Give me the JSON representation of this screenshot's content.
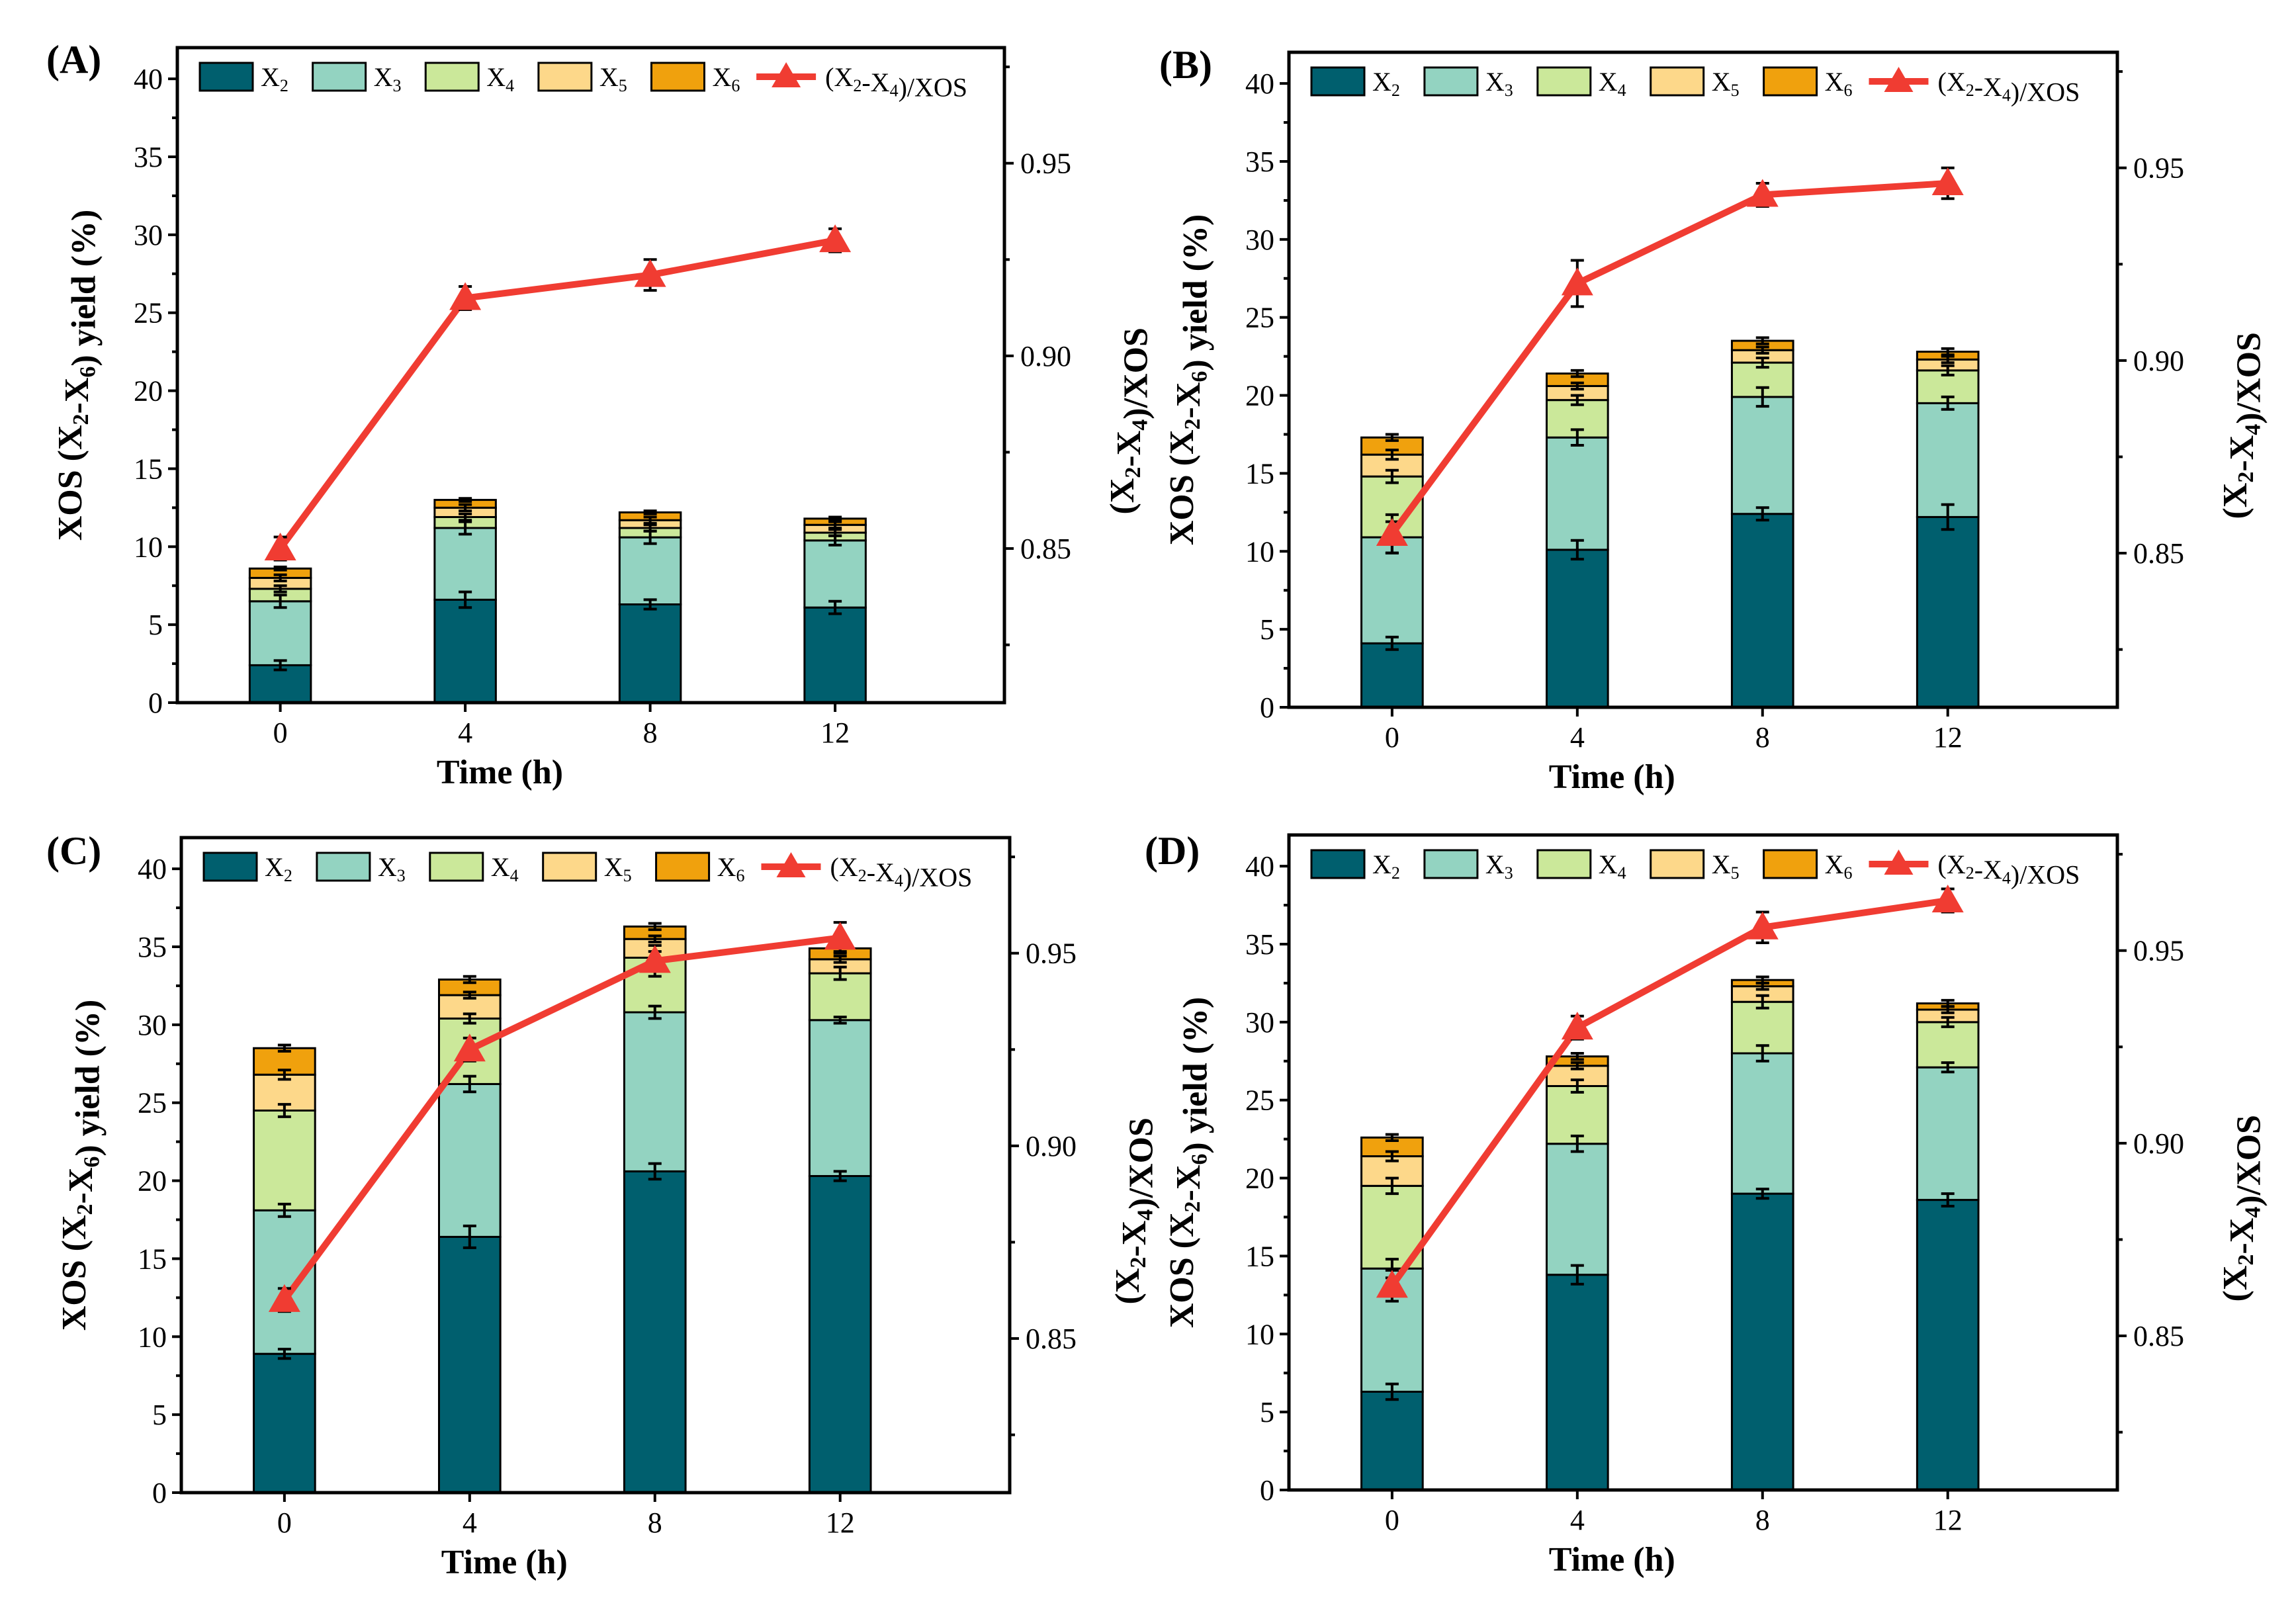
{
  "chart_data": [
    {
      "panel_label": "(A)",
      "type": "bar",
      "stacked": true,
      "categories": [
        "0",
        "4",
        "8",
        "12"
      ],
      "xlabel": "Time (h)",
      "ylabel": "XOS (X2-X6) yield (%)",
      "y2label": "(X2-X4)/XOS",
      "ylim": [
        0,
        42
      ],
      "y2lim": [
        0.81,
        0.98
      ],
      "yticks": [
        "0",
        "5",
        "10",
        "15",
        "20",
        "25",
        "30",
        "35",
        "40"
      ],
      "y2ticks": [
        "0.85",
        "0.90",
        "0.95"
      ],
      "legend_position": "top",
      "series": [
        {
          "name": "X2",
          "color": "#005f6e",
          "values": [
            2.4,
            6.6,
            6.3,
            6.1
          ],
          "errors": [
            0.3,
            0.5,
            0.3,
            0.4
          ]
        },
        {
          "name": "X3",
          "color": "#93d3c1",
          "values": [
            4.1,
            4.6,
            4.3,
            4.3
          ],
          "errors": [
            0.4,
            0.4,
            0.4,
            0.3
          ]
        },
        {
          "name": "X4",
          "color": "#cbe89a",
          "values": [
            0.8,
            0.7,
            0.6,
            0.5
          ],
          "errors": [
            0.2,
            0.2,
            0.2,
            0.2
          ]
        },
        {
          "name": "X5",
          "color": "#fdd88a",
          "values": [
            0.7,
            0.6,
            0.5,
            0.5
          ],
          "errors": [
            0.2,
            0.2,
            0.2,
            0.2
          ]
        },
        {
          "name": "X6",
          "color": "#f0a10d",
          "values": [
            0.6,
            0.5,
            0.5,
            0.4
          ],
          "errors": [
            0.1,
            0.1,
            0.1,
            0.1
          ]
        }
      ],
      "ratio_series": {
        "name": "(X2-X4)/XOS",
        "color": "#f03c32",
        "values": [
          0.85,
          0.915,
          0.921,
          0.93
        ],
        "errors": [
          0.003,
          0.003,
          0.004,
          0.003
        ]
      }
    },
    {
      "panel_label": "(B)",
      "type": "bar",
      "stacked": true,
      "categories": [
        "0",
        "4",
        "8",
        "12"
      ],
      "xlabel": "Time (h)",
      "ylabel": "XOS (X2-X6) yield (%)",
      "y2label": "(X2-X4)/XOS",
      "ylim": [
        0,
        42
      ],
      "y2lim": [
        0.81,
        0.98
      ],
      "yticks": [
        "0",
        "5",
        "10",
        "15",
        "20",
        "25",
        "30",
        "35",
        "40"
      ],
      "y2ticks": [
        "0.85",
        "0.90",
        "0.95"
      ],
      "legend_position": "top",
      "series": [
        {
          "name": "X2",
          "color": "#005f6e",
          "values": [
            4.1,
            10.1,
            12.4,
            12.2
          ],
          "errors": [
            0.4,
            0.6,
            0.4,
            0.8
          ]
        },
        {
          "name": "X3",
          "color": "#93d3c1",
          "values": [
            6.8,
            7.2,
            7.5,
            7.3
          ],
          "errors": [
            1.0,
            0.5,
            0.6,
            0.4
          ]
        },
        {
          "name": "X4",
          "color": "#cbe89a",
          "values": [
            3.9,
            2.4,
            2.2,
            2.1
          ],
          "errors": [
            0.4,
            0.3,
            0.3,
            0.3
          ]
        },
        {
          "name": "X5",
          "color": "#fdd88a",
          "values": [
            1.4,
            0.9,
            0.8,
            0.7
          ],
          "errors": [
            0.3,
            0.2,
            0.2,
            0.2
          ]
        },
        {
          "name": "X6",
          "color": "#f0a10d",
          "values": [
            1.1,
            0.8,
            0.6,
            0.5
          ],
          "errors": [
            0.2,
            0.2,
            0.2,
            0.2
          ]
        }
      ],
      "ratio_series": {
        "name": "(X2-X4)/XOS",
        "color": "#f03c32",
        "values": [
          0.855,
          0.92,
          0.943,
          0.946
        ],
        "errors": [
          0.005,
          0.006,
          0.003,
          0.004
        ]
      }
    },
    {
      "panel_label": "(C)",
      "type": "bar",
      "stacked": true,
      "categories": [
        "0",
        "4",
        "8",
        "12"
      ],
      "xlabel": "Time (h)",
      "ylabel": "XOS (X2-X6) yield (%)",
      "y2label": "(X2-X4)/XOS",
      "ylim": [
        0,
        42
      ],
      "y2lim": [
        0.81,
        0.98
      ],
      "yticks": [
        "0",
        "5",
        "10",
        "15",
        "20",
        "25",
        "30",
        "35",
        "40"
      ],
      "y2ticks": [
        "0.85",
        "0.90",
        "0.95"
      ],
      "legend_position": "top",
      "series": [
        {
          "name": "X2",
          "color": "#005f6e",
          "values": [
            8.9,
            16.4,
            20.6,
            20.3
          ],
          "errors": [
            0.3,
            0.7,
            0.5,
            0.3
          ]
        },
        {
          "name": "X3",
          "color": "#93d3c1",
          "values": [
            9.2,
            9.8,
            10.2,
            10.0
          ],
          "errors": [
            0.4,
            0.5,
            0.4,
            0.2
          ]
        },
        {
          "name": "X4",
          "color": "#cbe89a",
          "values": [
            6.4,
            4.2,
            3.5,
            3.0
          ],
          "errors": [
            0.4,
            0.3,
            0.4,
            0.4
          ]
        },
        {
          "name": "X5",
          "color": "#fdd88a",
          "values": [
            2.3,
            1.5,
            1.2,
            0.9
          ],
          "errors": [
            0.3,
            0.2,
            0.2,
            0.2
          ]
        },
        {
          "name": "X6",
          "color": "#f0a10d",
          "values": [
            1.7,
            1.0,
            0.8,
            0.7
          ],
          "errors": [
            0.2,
            0.2,
            0.2,
            0.2
          ]
        }
      ],
      "ratio_series": {
        "name": "(X2-X4)/XOS",
        "color": "#f03c32",
        "values": [
          0.86,
          0.925,
          0.948,
          0.954
        ],
        "errors": [
          0.003,
          0.003,
          0.004,
          0.004
        ]
      }
    },
    {
      "panel_label": "(D)",
      "type": "bar",
      "stacked": true,
      "categories": [
        "0",
        "4",
        "8",
        "12"
      ],
      "xlabel": "Time (h)",
      "ylabel": "XOS (X2-X6) yield (%)",
      "y2label": "(X2-X4)/XOS",
      "ylim": [
        0,
        42
      ],
      "y2lim": [
        0.81,
        0.98
      ],
      "yticks": [
        "0",
        "5",
        "10",
        "15",
        "20",
        "25",
        "30",
        "35",
        "40"
      ],
      "y2ticks": [
        "0.85",
        "0.90",
        "0.95"
      ],
      "legend_position": "top",
      "series": [
        {
          "name": "X2",
          "color": "#005f6e",
          "values": [
            6.3,
            13.8,
            19.0,
            18.6
          ],
          "errors": [
            0.5,
            0.6,
            0.3,
            0.4
          ]
        },
        {
          "name": "X3",
          "color": "#93d3c1",
          "values": [
            7.9,
            8.4,
            9.0,
            8.5
          ],
          "errors": [
            0.6,
            0.5,
            0.5,
            0.3
          ]
        },
        {
          "name": "X4",
          "color": "#cbe89a",
          "values": [
            5.3,
            3.7,
            3.3,
            2.9
          ],
          "errors": [
            0.5,
            0.4,
            0.4,
            0.3
          ]
        },
        {
          "name": "X5",
          "color": "#fdd88a",
          "values": [
            1.9,
            1.3,
            1.0,
            0.8
          ],
          "errors": [
            0.3,
            0.2,
            0.2,
            0.2
          ]
        },
        {
          "name": "X6",
          "color": "#f0a10d",
          "values": [
            1.2,
            0.6,
            0.4,
            0.4
          ],
          "errors": [
            0.2,
            0.2,
            0.2,
            0.2
          ]
        }
      ],
      "ratio_series": {
        "name": "(X2-X4)/XOS",
        "color": "#f03c32",
        "values": [
          0.863,
          0.93,
          0.956,
          0.963
        ],
        "errors": [
          0.004,
          0.003,
          0.004,
          0.003
        ]
      }
    }
  ]
}
